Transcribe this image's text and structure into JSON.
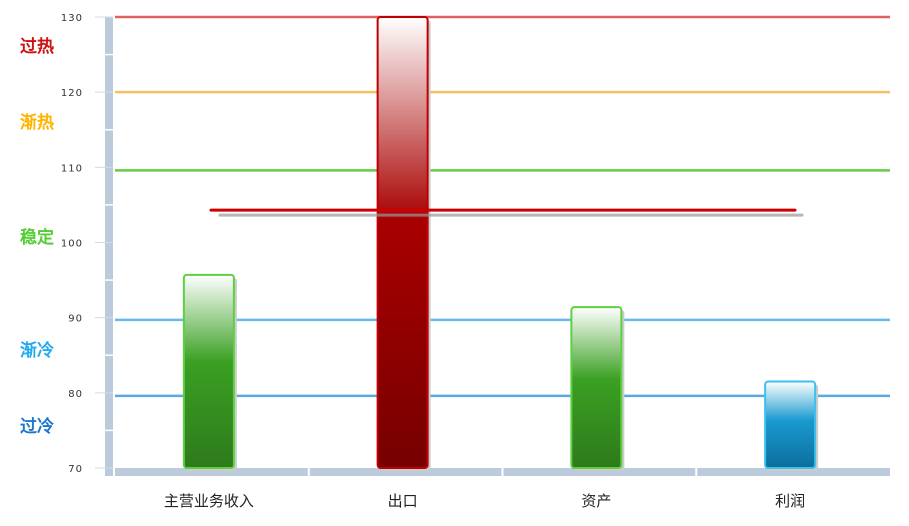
{
  "chart_data": {
    "type": "bar",
    "categories": [
      "主营业务收入",
      "出口",
      "资产",
      "利润"
    ],
    "values": [
      95.7,
      130,
      91.4,
      81.5
    ],
    "bar_colors": [
      "#3a9e26",
      "#a00000",
      "#3a9e26",
      "#1a8cc4"
    ],
    "ylim": [
      70,
      130
    ],
    "yticks": [
      "70",
      "80",
      "90",
      "100",
      "110",
      "120",
      "130"
    ],
    "reference_line": 104.3,
    "reference_line_color": "#cc0000",
    "thresholds": [
      {
        "value": 130,
        "color": "#e06060"
      },
      {
        "value": 120,
        "color": "#f5c060"
      },
      {
        "value": 109.6,
        "color": "#66cc44"
      },
      {
        "value": 89.7,
        "color": "#66bbee"
      },
      {
        "value": 79.6,
        "color": "#5aa8e0"
      }
    ],
    "zones": [
      {
        "label": "过热",
        "color": "#cc1111"
      },
      {
        "label": "渐热",
        "color": "#ffb400"
      },
      {
        "label": "稳定",
        "color": "#55cc33"
      },
      {
        "label": "渐冷",
        "color": "#22aaee"
      },
      {
        "label": "过冷",
        "color": "#1a77cc"
      }
    ]
  }
}
